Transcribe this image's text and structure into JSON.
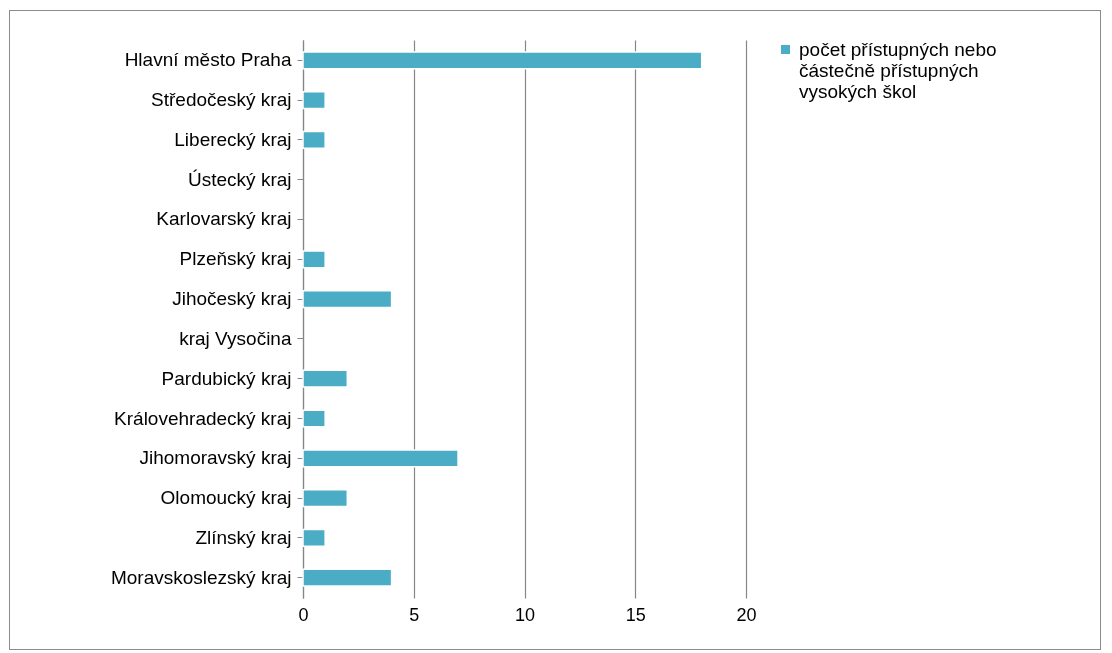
{
  "chart_data": {
    "type": "bar",
    "orientation": "horizontal",
    "categories": [
      "Hlavní město Praha",
      "Středočeský kraj",
      "Liberecký kraj",
      "Ústecký kraj",
      "Karlovarský kraj",
      "Plzeňský kraj",
      "Jihočeský kraj",
      "kraj Vysočina",
      "Pardubický kraj",
      "Královehradecký kraj",
      "Jihomoravský kraj",
      "Olomoucký kraj",
      "Zlínský kraj",
      "Moravskoslezský kraj"
    ],
    "series": [
      {
        "name": "počet přístupných nebo částečně přístupných vysokých škol",
        "color": "#4bacc6",
        "values": [
          18,
          1,
          1,
          0,
          0,
          1,
          4,
          0,
          2,
          1,
          7,
          2,
          1,
          4
        ]
      }
    ],
    "xlim": [
      0,
      20
    ],
    "xticks": [
      0,
      5,
      10,
      15,
      20
    ],
    "grid": "x",
    "legend": "right"
  }
}
